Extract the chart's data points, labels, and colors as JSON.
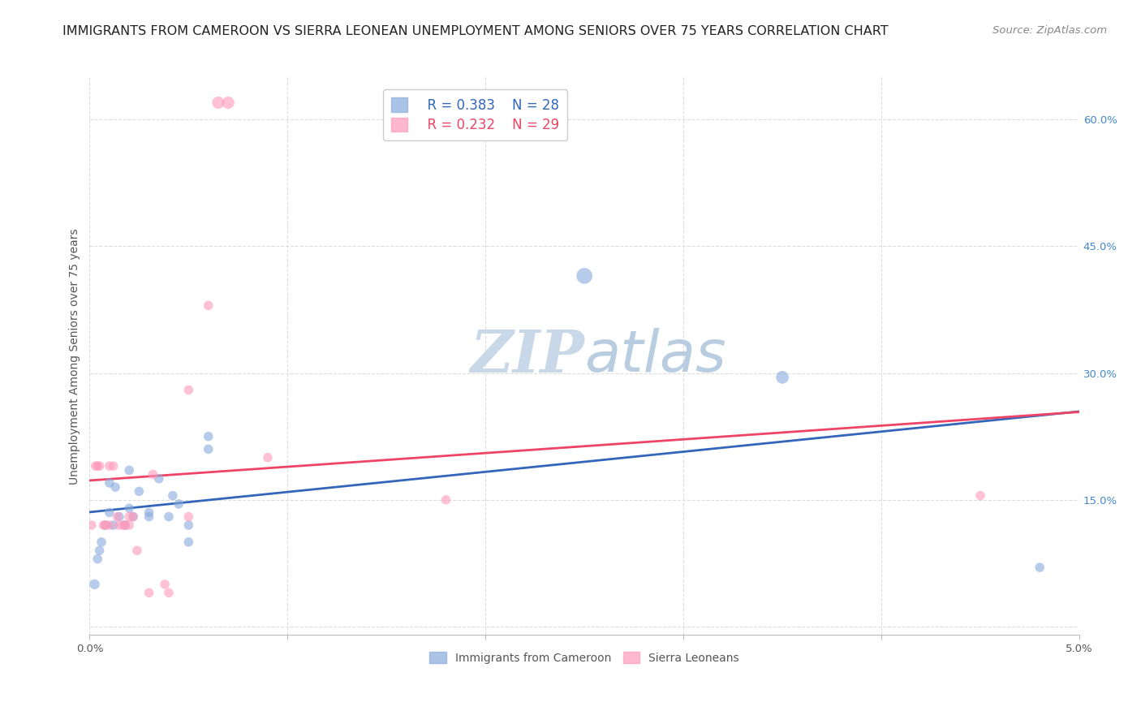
{
  "title": "IMMIGRANTS FROM CAMEROON VS SIERRA LEONEAN UNEMPLOYMENT AMONG SENIORS OVER 75 YEARS CORRELATION CHART",
  "source": "Source: ZipAtlas.com",
  "ylabel": "Unemployment Among Seniors over 75 years",
  "xlim": [
    0.0,
    0.05
  ],
  "ylim": [
    -0.01,
    0.65
  ],
  "yticks": [
    0.0,
    0.15,
    0.3,
    0.45,
    0.6
  ],
  "ytick_labels": [
    "",
    "15.0%",
    "30.0%",
    "45.0%",
    "60.0%"
  ],
  "xticks": [
    0.0,
    0.01,
    0.02,
    0.03,
    0.04,
    0.05
  ],
  "xtick_labels": [
    "0.0%",
    "",
    "",
    "",
    "",
    "5.0%"
  ],
  "legend_r1": "R = 0.383",
  "legend_n1": "N = 28",
  "legend_r2": "R = 0.232",
  "legend_n2": "N = 29",
  "label1": "Immigrants from Cameroon",
  "label2": "Sierra Leoneans",
  "color1": "#88AADD",
  "color2": "#FF99BB",
  "trendline1_color": "#3366BB",
  "trendline2_color": "#EE4466",
  "watermark_zip": "ZIP",
  "watermark_atlas": "atlas",
  "cameroon_x": [
    0.00025,
    0.0004,
    0.0005,
    0.0006,
    0.0008,
    0.001,
    0.001,
    0.0012,
    0.0013,
    0.0015,
    0.0018,
    0.002,
    0.002,
    0.0022,
    0.0025,
    0.003,
    0.003,
    0.0035,
    0.004,
    0.0042,
    0.0045,
    0.005,
    0.005,
    0.006,
    0.006,
    0.025,
    0.035,
    0.048
  ],
  "cameroon_y": [
    0.05,
    0.08,
    0.09,
    0.1,
    0.12,
    0.135,
    0.17,
    0.12,
    0.165,
    0.13,
    0.12,
    0.185,
    0.14,
    0.13,
    0.16,
    0.135,
    0.13,
    0.175,
    0.13,
    0.155,
    0.145,
    0.12,
    0.1,
    0.225,
    0.21,
    0.415,
    0.295,
    0.07
  ],
  "cameroon_sizes": [
    80,
    70,
    70,
    70,
    70,
    70,
    70,
    70,
    70,
    70,
    70,
    70,
    70,
    70,
    70,
    70,
    70,
    70,
    70,
    70,
    70,
    70,
    70,
    70,
    70,
    200,
    130,
    70
  ],
  "sierraleone_x": [
    0.0001,
    0.0003,
    0.0004,
    0.0005,
    0.0007,
    0.0008,
    0.001,
    0.001,
    0.0012,
    0.0014,
    0.0015,
    0.0017,
    0.0018,
    0.002,
    0.002,
    0.0022,
    0.0024,
    0.003,
    0.0032,
    0.0038,
    0.004,
    0.005,
    0.005,
    0.006,
    0.0065,
    0.007,
    0.009,
    0.018,
    0.045
  ],
  "sierraleone_y": [
    0.12,
    0.19,
    0.19,
    0.19,
    0.12,
    0.12,
    0.19,
    0.12,
    0.19,
    0.13,
    0.12,
    0.12,
    0.12,
    0.12,
    0.13,
    0.13,
    0.09,
    0.04,
    0.18,
    0.05,
    0.04,
    0.28,
    0.13,
    0.38,
    0.62,
    0.62,
    0.2,
    0.15,
    0.155
  ],
  "sierraleone_sizes": [
    70,
    70,
    70,
    70,
    70,
    70,
    70,
    70,
    70,
    70,
    70,
    70,
    70,
    70,
    70,
    70,
    70,
    70,
    70,
    70,
    70,
    70,
    70,
    70,
    120,
    120,
    70,
    70,
    70
  ],
  "background_color": "#ffffff",
  "grid_color": "#dddddd",
  "title_fontsize": 11.5,
  "source_fontsize": 9.5,
  "axis_label_fontsize": 10,
  "tick_fontsize": 9.5,
  "legend_fontsize": 12,
  "watermark_fontsize_zip": 52,
  "watermark_fontsize_atlas": 52,
  "watermark_color_zip": "#c8d8e8",
  "watermark_color_atlas": "#b8cde0",
  "trendline_x_start": 0.0,
  "trendline_x_end": 0.05
}
